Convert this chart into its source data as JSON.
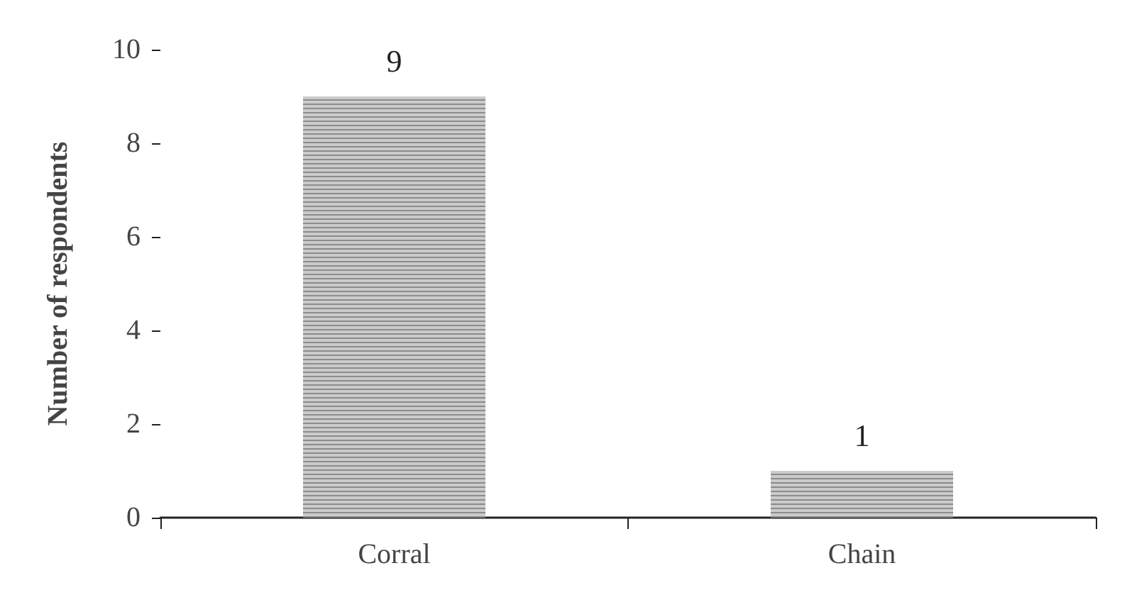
{
  "chart_data": {
    "type": "bar",
    "ylabel": "Number of respondents",
    "categories": [
      "Corral",
      "Chain"
    ],
    "values": [
      9,
      1
    ],
    "color": "#8c8c8c",
    "ylim": [
      0,
      10
    ],
    "yticks": [
      0,
      2,
      4,
      6,
      8,
      10
    ],
    "grid": false,
    "data_labels": true
  }
}
